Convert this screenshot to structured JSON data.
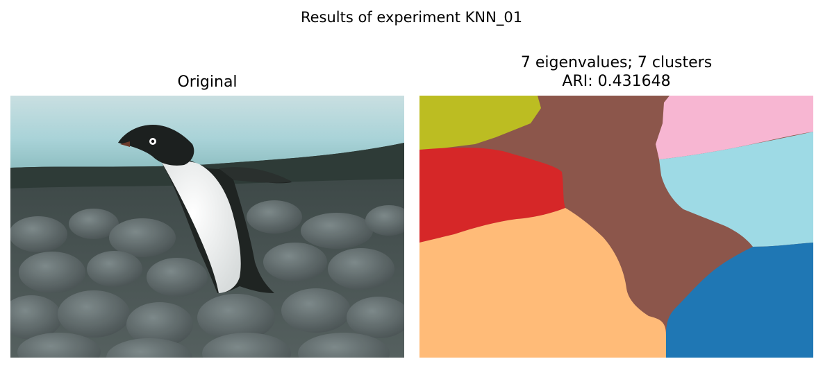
{
  "figure": {
    "suptitle": "Results of experiment KNN_01"
  },
  "left_panel": {
    "title": "Original",
    "image_description_icon": "penguin-photo"
  },
  "right_panel": {
    "title_line1": "7 eigenvalues; 7 clusters",
    "title_line2": "ARI: 0.431648",
    "cluster_colors": {
      "olive": "#bcbd22",
      "brown": "#8c564b",
      "pink": "#f7b6d2",
      "red": "#d62728",
      "light_blue": "#9edae5",
      "light_orange": "#ffbb78",
      "blue": "#1f77b4"
    }
  }
}
